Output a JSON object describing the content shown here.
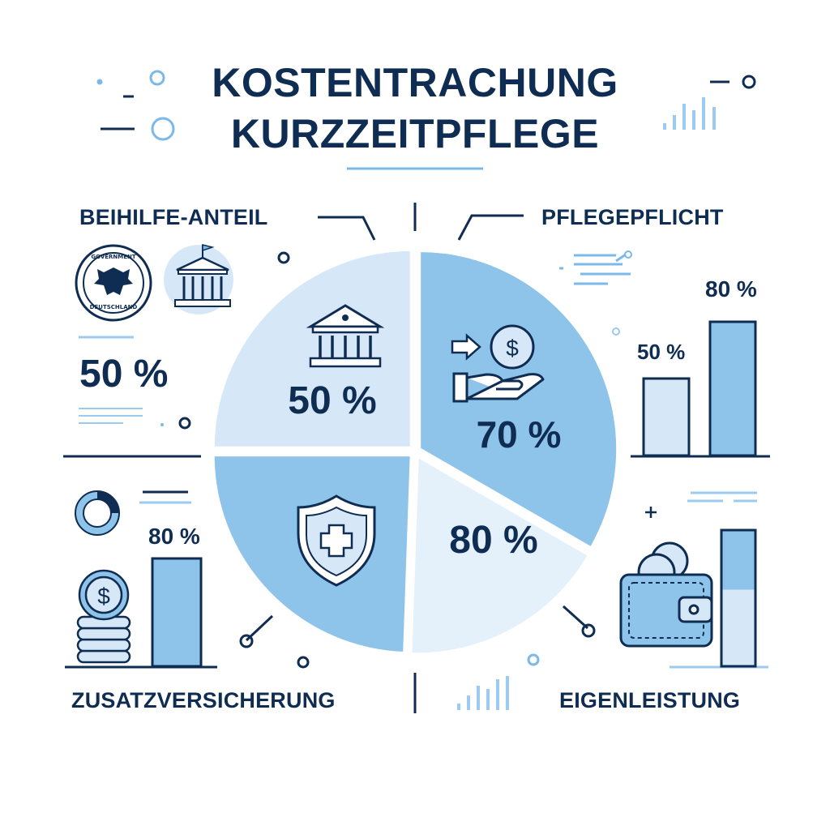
{
  "title_line1": "KOSTENTRACHUNG",
  "title_line2": "KURZZEITPFLEGE",
  "corners": {
    "top_left": "BEIHILFE-ANTEIL",
    "top_right": "PFLEGEPFLICHT",
    "bottom_left": "ZUSATZVERSICHERUNG",
    "bottom_right": "EIGENLEISTUNG"
  },
  "seal": {
    "text_top": "GOVERNMENT",
    "text_bottom": "DEUTSCHLAND"
  },
  "side_values": {
    "top_left": "50 %",
    "top_right_bar_small": "50 %",
    "top_right_bar_large": "80 %",
    "bottom_left_bar": "80 %"
  },
  "colors": {
    "navy": "#0f2d52",
    "light_blue": "#d6e8f7",
    "mid_blue": "#8ec3ea",
    "pale_blue": "#e4f0fa",
    "accent": "#7cb9e8"
  },
  "chart_data": {
    "type": "pie",
    "title": "KOSTENTRACHUNG KURZZEITPFLEGE",
    "slices": [
      {
        "label": "BEIHILFE-ANTEIL",
        "value_label": "50 %",
        "icon": "government-building-icon"
      },
      {
        "label": "PFLEGEPFLICHT",
        "value_label": "70 %",
        "icon": "hand-coin-icon"
      },
      {
        "label": "EIGENLEISTUNG",
        "value_label": "80 %",
        "icon": ""
      },
      {
        "label": "ZUSATZVERSICHERUNG",
        "value_label": "",
        "icon": "shield-cross-icon"
      }
    ]
  }
}
